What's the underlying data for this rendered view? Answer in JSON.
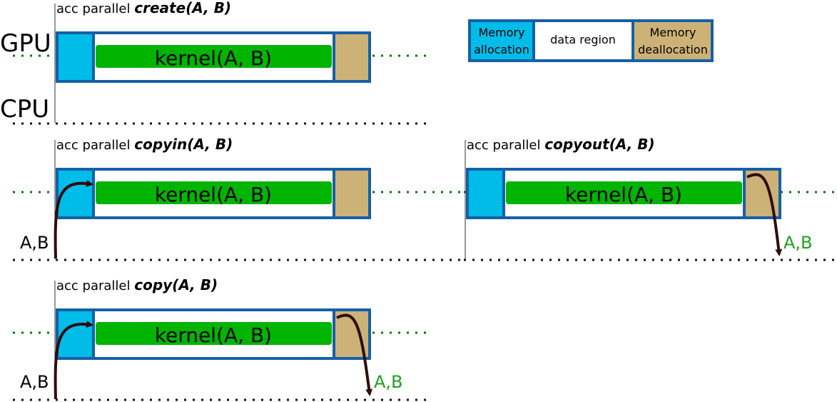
{
  "lanes": {
    "gpu": "GPU",
    "cpu": "CPU"
  },
  "legend": {
    "alloc": [
      "Memory",
      "allocation"
    ],
    "region": "data region",
    "dealloc": [
      "Memory",
      "deallocation"
    ]
  },
  "panels": [
    {
      "id": "create",
      "prefix": "acc parallel ",
      "clause": "create(A, B)",
      "kernel": "kernel(A, B)",
      "input_label": "",
      "output_label": ""
    },
    {
      "id": "copyin",
      "prefix": "acc parallel ",
      "clause": "copyin(A, B)",
      "kernel": "kernel(A, B)",
      "input_label": "A,B",
      "output_label": ""
    },
    {
      "id": "copyout",
      "prefix": "acc parallel ",
      "clause": "copyout(A, B)",
      "kernel": "kernel(A, B)",
      "input_label": "",
      "output_label": "A,B"
    },
    {
      "id": "copy",
      "prefix": "acc parallel ",
      "clause": "copy(A, B)",
      "kernel": "kernel(A, B)",
      "input_label": "A,B",
      "output_label": "A,B"
    }
  ],
  "colors": {
    "alloc": "#00bce8",
    "dealloc": "#cdb277",
    "border": "#1660a6",
    "kernel": "#00b400",
    "gpu_line": "#0a780a",
    "cpu_line": "#111111",
    "arrow": "#2e0e0e",
    "output_text": "#20a020"
  }
}
